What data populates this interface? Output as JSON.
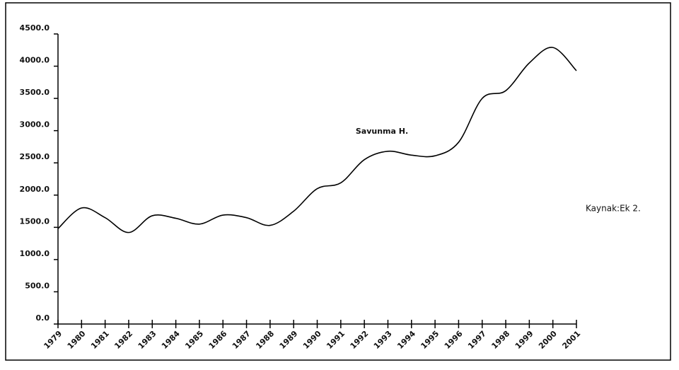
{
  "chart_data": {
    "type": "line",
    "categories": [
      "1979",
      "1980",
      "1981",
      "1982",
      "1983",
      "1984",
      "1985",
      "1986",
      "1987",
      "1988",
      "1989",
      "1990",
      "1991",
      "1992",
      "1993",
      "1994",
      "1995",
      "1996",
      "1997",
      "1998",
      "1999",
      "2000",
      "2001"
    ],
    "series": [
      {
        "name": "Savunma H.",
        "color": "#000000",
        "values": [
          1480,
          1800,
          1650,
          1420,
          1680,
          1640,
          1550,
          1690,
          1650,
          1530,
          1750,
          2100,
          2190,
          2550,
          2680,
          2620,
          2610,
          2820,
          3500,
          3620,
          4050,
          4290,
          3930
        ]
      }
    ],
    "ylim": [
      0,
      4500
    ],
    "yticks": [
      {
        "value": 0,
        "label": "0.0"
      },
      {
        "value": 500,
        "label": "500.0"
      },
      {
        "value": 1000,
        "label": "1000.0"
      },
      {
        "value": 1500,
        "label": "1500.0"
      },
      {
        "value": 2000,
        "label": "2000.0"
      },
      {
        "value": 2500,
        "label": "2500.0"
      },
      {
        "value": 3000,
        "label": "3000.0"
      },
      {
        "value": 3500,
        "label": "3500.0"
      },
      {
        "value": 4000,
        "label": "4000.0"
      },
      {
        "value": 4500,
        "label": "4500.0"
      }
    ],
    "annotation": "Kaynak:Ek 2.",
    "grid": false
  }
}
